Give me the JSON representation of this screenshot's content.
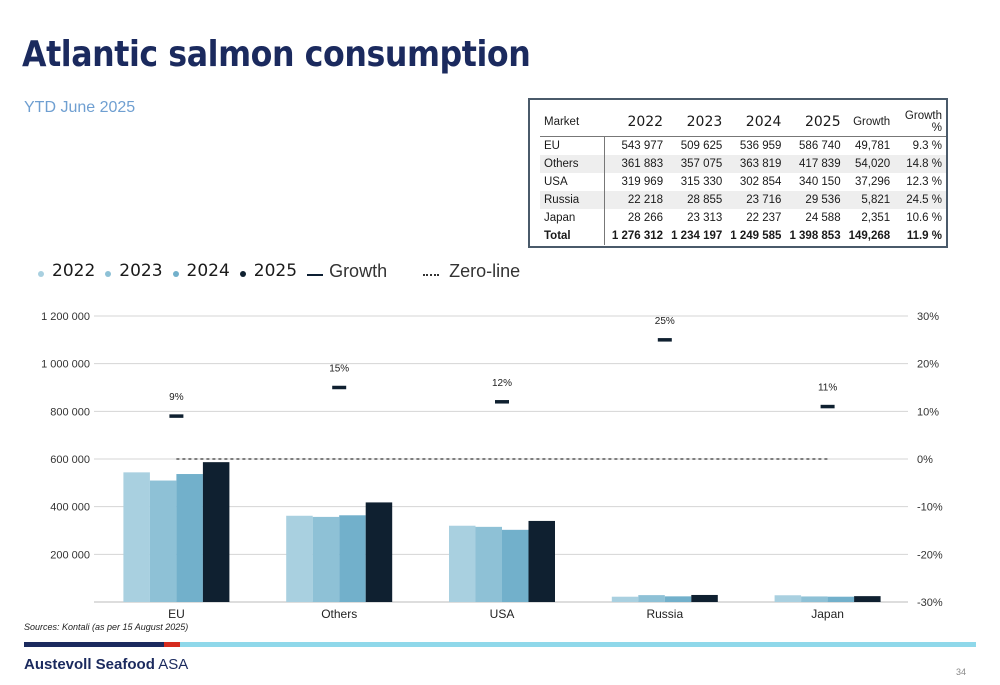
{
  "page": {
    "title": "Atlantic salmon consumption",
    "subtitle": "YTD June 2025",
    "source": "Sources: Kontali (as per 15 August 2025)",
    "company_bold": "Austevoll Seafood",
    "company_rest": " ASA",
    "page_number": "34"
  },
  "table": {
    "headers": [
      "Market",
      "2022",
      "2023",
      "2024",
      "2025",
      "Growth",
      "Growth %"
    ],
    "rows": [
      [
        "EU",
        "543 977",
        "509 625",
        "536 959",
        "586 740",
        "49,781",
        "9.3 %"
      ],
      [
        "Others",
        "361 883",
        "357 075",
        "363 819",
        "417 839",
        "54,020",
        "14.8 %"
      ],
      [
        "USA",
        "319 969",
        "315 330",
        "302 854",
        "340 150",
        "37,296",
        "12.3 %"
      ],
      [
        "Russia",
        "22 218",
        "28 855",
        "23 716",
        "29 536",
        "5,821",
        "24.5 %"
      ],
      [
        "Japan",
        "28 266",
        "23 313",
        "22 237",
        "24 588",
        "2,351",
        "10.6 %"
      ],
      [
        "Total",
        "1 276 312",
        "1 234 197",
        "1 249 585",
        "1 398 853",
        "149,268",
        "11.9 %"
      ]
    ]
  },
  "legend": {
    "items": [
      {
        "label": "2022",
        "color": "#a9d0e0"
      },
      {
        "label": "2023",
        "color": "#8ec1d6"
      },
      {
        "label": "2024",
        "color": "#72b0cb"
      },
      {
        "label": "2025",
        "color": "#0f2030"
      }
    ],
    "growth_label": "Growth",
    "zero_label": "Zero-line"
  },
  "chart_data": {
    "type": "bar",
    "categories": [
      "EU",
      "Others",
      "USA",
      "Russia",
      "Japan"
    ],
    "series": [
      {
        "name": "2022",
        "color": "#a9d0e0",
        "values": [
          543977,
          361883,
          319969,
          22218,
          28266
        ]
      },
      {
        "name": "2023",
        "color": "#8ec1d6",
        "values": [
          509625,
          357075,
          315330,
          28855,
          23313
        ]
      },
      {
        "name": "2024",
        "color": "#72b0cb",
        "values": [
          536959,
          363819,
          302854,
          23716,
          22237
        ]
      },
      {
        "name": "2025",
        "color": "#0f2030",
        "values": [
          586740,
          417839,
          340150,
          29536,
          24588
        ]
      }
    ],
    "growth": {
      "name": "Growth",
      "color": "#0f2030",
      "values": [
        9,
        15,
        12,
        25,
        11
      ],
      "labels": [
        "9%",
        "15%",
        "12%",
        "25%",
        "11%"
      ]
    },
    "zero_line": {
      "name": "Zero-line",
      "value": 0
    },
    "y_left": {
      "ylim": [
        0,
        1200000
      ],
      "ticks": [
        200000,
        400000,
        600000,
        800000,
        1000000,
        1200000
      ],
      "tick_labels": [
        "200 000",
        "400 000",
        "600 000",
        "800 000",
        "1 000 000",
        "1 200 000"
      ]
    },
    "y_right": {
      "ylim": [
        -30,
        30
      ],
      "ticks": [
        -30,
        -20,
        -10,
        0,
        10,
        20,
        30
      ],
      "tick_labels": [
        "-30%",
        "-20%",
        "-10%",
        "0%",
        "10%",
        "20%",
        "30%"
      ]
    },
    "grid": true,
    "legend_position": "top-left"
  }
}
